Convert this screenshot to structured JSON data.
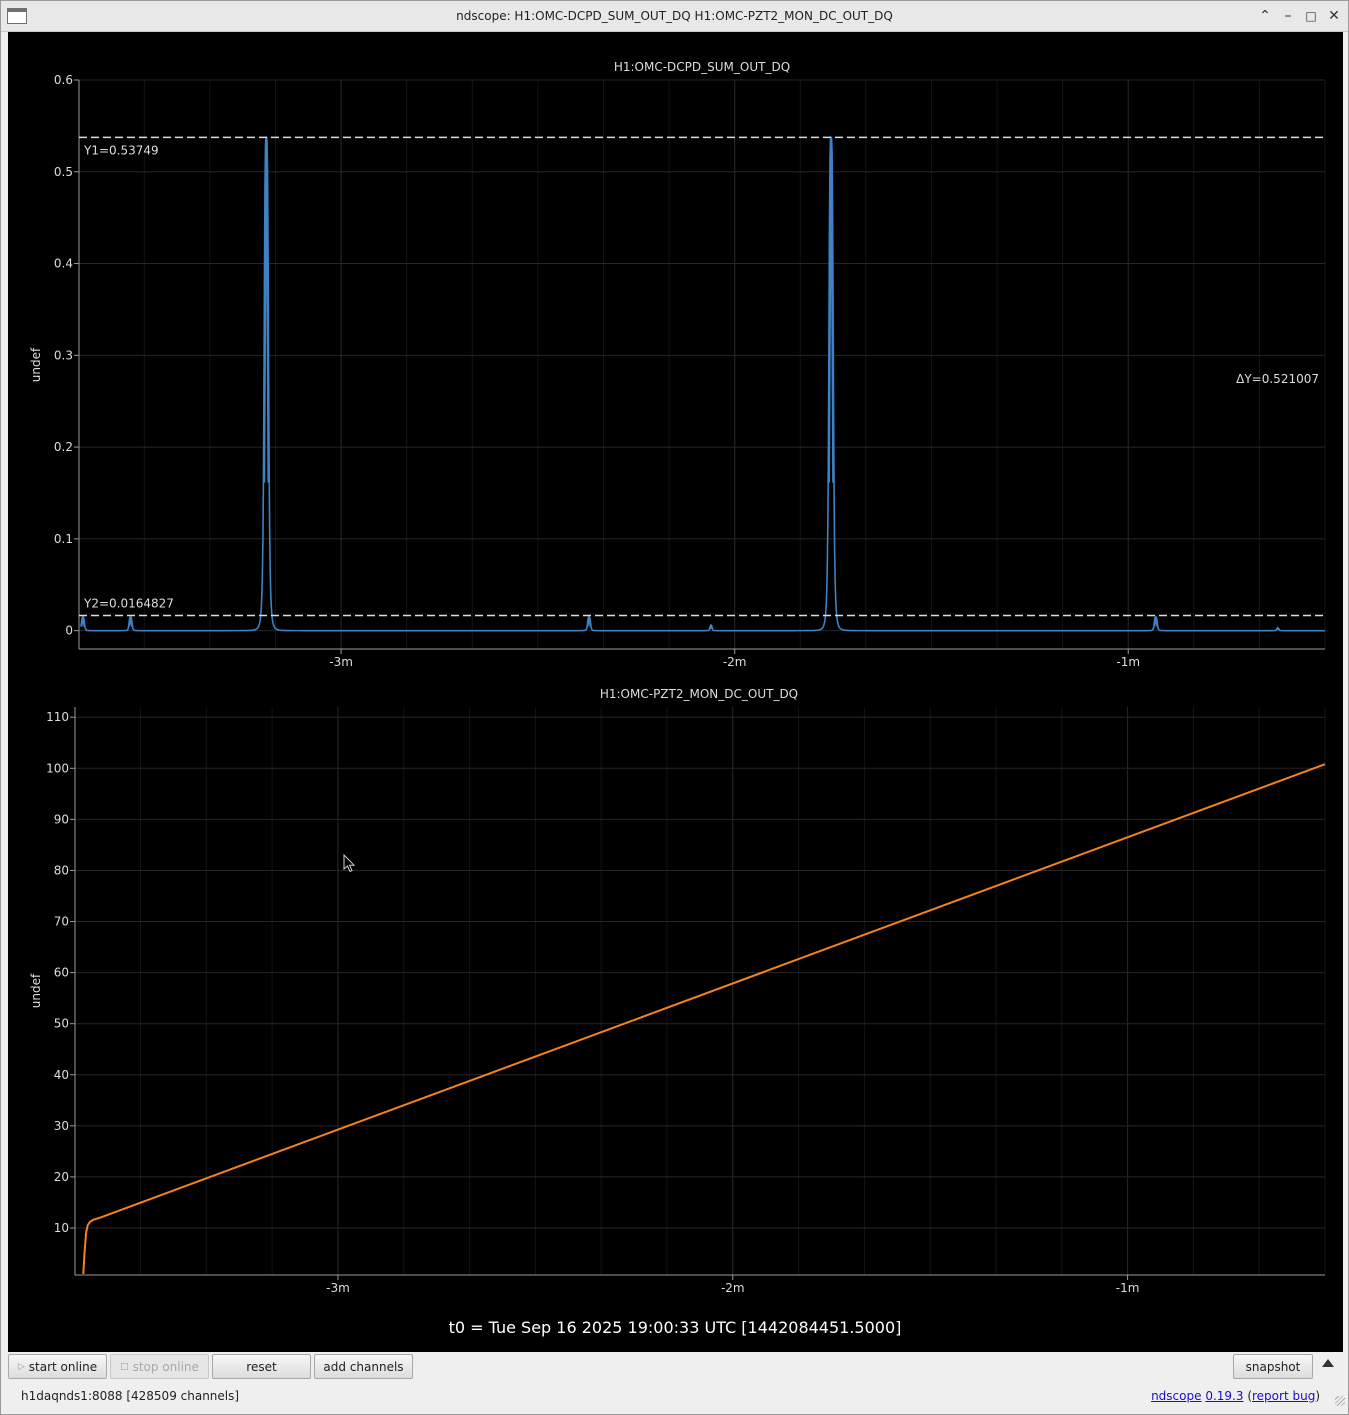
{
  "window": {
    "title": "ndscope: H1:OMC-DCPD_SUM_OUT_DQ H1:OMC-PZT2_MON_DC_OUT_DQ"
  },
  "titlebar_icons": [
    "maximize-chevron-icon",
    "minimize-icon",
    "restore-icon",
    "close-icon"
  ],
  "colors": {
    "plot_background": "#000000",
    "trace_1": "#3d82c4",
    "trace_2": "#f5821f",
    "grid": "#262626",
    "cursor": "#dddddd"
  },
  "chart_data": [
    {
      "type": "line",
      "title": "H1:OMC-DCPD_SUM_OUT_DQ",
      "ylabel": "undef",
      "xlabel": "",
      "ylim": [
        -0.02,
        0.6
      ],
      "xlim": [
        -3.666,
        -0.5
      ],
      "x_unit": "minutes",
      "yticks": [
        0,
        0.1,
        0.2,
        0.3,
        0.4,
        0.5,
        0.6
      ],
      "ytick_labels": [
        "0",
        "0.1",
        "0.2",
        "0.3",
        "0.4",
        "0.5",
        "0.6"
      ],
      "xticks": [
        -3,
        -2,
        -1
      ],
      "xtick_labels": [
        "-3m",
        "-2m",
        "-1m"
      ],
      "grid": true,
      "series": [
        {
          "color": "#3d82c4",
          "baseline": 0.0,
          "peaks": [
            {
              "x": -3.656,
              "y": 0.015,
              "w": 0.004
            },
            {
              "x": -3.535,
              "y": 0.015,
              "w": 0.004
            },
            {
              "x": -3.19,
              "y": 0.5375,
              "w": 0.006
            },
            {
              "x": -2.37,
              "y": 0.015,
              "w": 0.004
            },
            {
              "x": -2.06,
              "y": 0.006,
              "w": 0.003
            },
            {
              "x": -1.755,
              "y": 0.5375,
              "w": 0.006
            },
            {
              "x": -0.93,
              "y": 0.015,
              "w": 0.004
            },
            {
              "x": -0.62,
              "y": 0.003,
              "w": 0.003
            }
          ]
        }
      ],
      "cursors": {
        "y1": {
          "value": 0.53749,
          "label": "Y1=0.53749"
        },
        "y2": {
          "value": 0.0164827,
          "label": "Y2=0.0164827"
        },
        "delta_label": "ΔY=0.521007"
      }
    },
    {
      "type": "line",
      "title": "H1:OMC-PZT2_MON_DC_OUT_DQ",
      "ylabel": "undef",
      "xlabel": "",
      "ylim": [
        0.8,
        112
      ],
      "xlim": [
        -3.666,
        -0.5
      ],
      "x_unit": "minutes",
      "yticks": [
        10,
        20,
        30,
        40,
        50,
        60,
        70,
        80,
        90,
        100,
        110
      ],
      "ytick_labels": [
        "10",
        "20",
        "30",
        "40",
        "50",
        "60",
        "70",
        "80",
        "90",
        "100",
        "110"
      ],
      "xticks": [
        -3,
        -2,
        -1
      ],
      "xtick_labels": [
        "-3m",
        "-2m",
        "-1m"
      ],
      "grid": true,
      "series": [
        {
          "color": "#f5821f",
          "x": [
            -3.645,
            -3.642,
            -3.638,
            -3.634,
            -3.628,
            -3.62,
            -3.6,
            -0.5
          ],
          "y": [
            1.0,
            5.0,
            9.0,
            10.5,
            11.2,
            11.6,
            12.1,
            100.8
          ]
        }
      ]
    }
  ],
  "t0_label": "t0 = Tue Sep 16 2025 19:00:33 UTC [1442084451.5000]",
  "toolbar": {
    "start_online": "start online",
    "stop_online": "stop online",
    "reset": "reset",
    "add_channels": "add channels",
    "snapshot": "snapshot"
  },
  "status": {
    "server": "h1daqnds1:8088  [428509 channels]",
    "app_name": "ndscope",
    "version": "0.19.3",
    "open_paren": " (",
    "report_bug": "report bug",
    "close_paren": ")"
  }
}
